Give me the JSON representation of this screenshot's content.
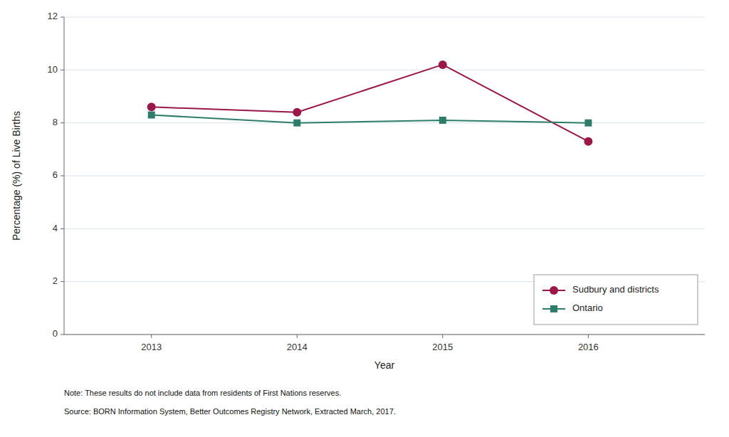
{
  "chart_data": {
    "type": "line",
    "x": [
      2013,
      2014,
      2015,
      2016
    ],
    "xlim": [
      2012.4,
      2016.8
    ],
    "xticks": [
      2013,
      2014,
      2015,
      2016
    ],
    "ylim": [
      0,
      12
    ],
    "yticks": [
      0,
      2,
      4,
      6,
      8,
      10,
      12
    ],
    "xlabel": "Year",
    "ylabel": "Percentage (%) of Live Births",
    "series": [
      {
        "name": "Sudbury and districts",
        "color": "#9B1748",
        "marker": "circle",
        "values": [
          8.6,
          8.4,
          10.2,
          7.3
        ]
      },
      {
        "name": "Ontario",
        "color": "#2E7D6B",
        "marker": "square",
        "values": [
          8.3,
          8.0,
          8.1,
          8.0
        ]
      }
    ],
    "grid": "y",
    "legend": "lower right",
    "annotations": [
      "Note: These results do not include data from residents of First Nations reserves.",
      "Source: BORN Information System, Better Outcomes Registry Network, Extracted March, 2017."
    ]
  }
}
